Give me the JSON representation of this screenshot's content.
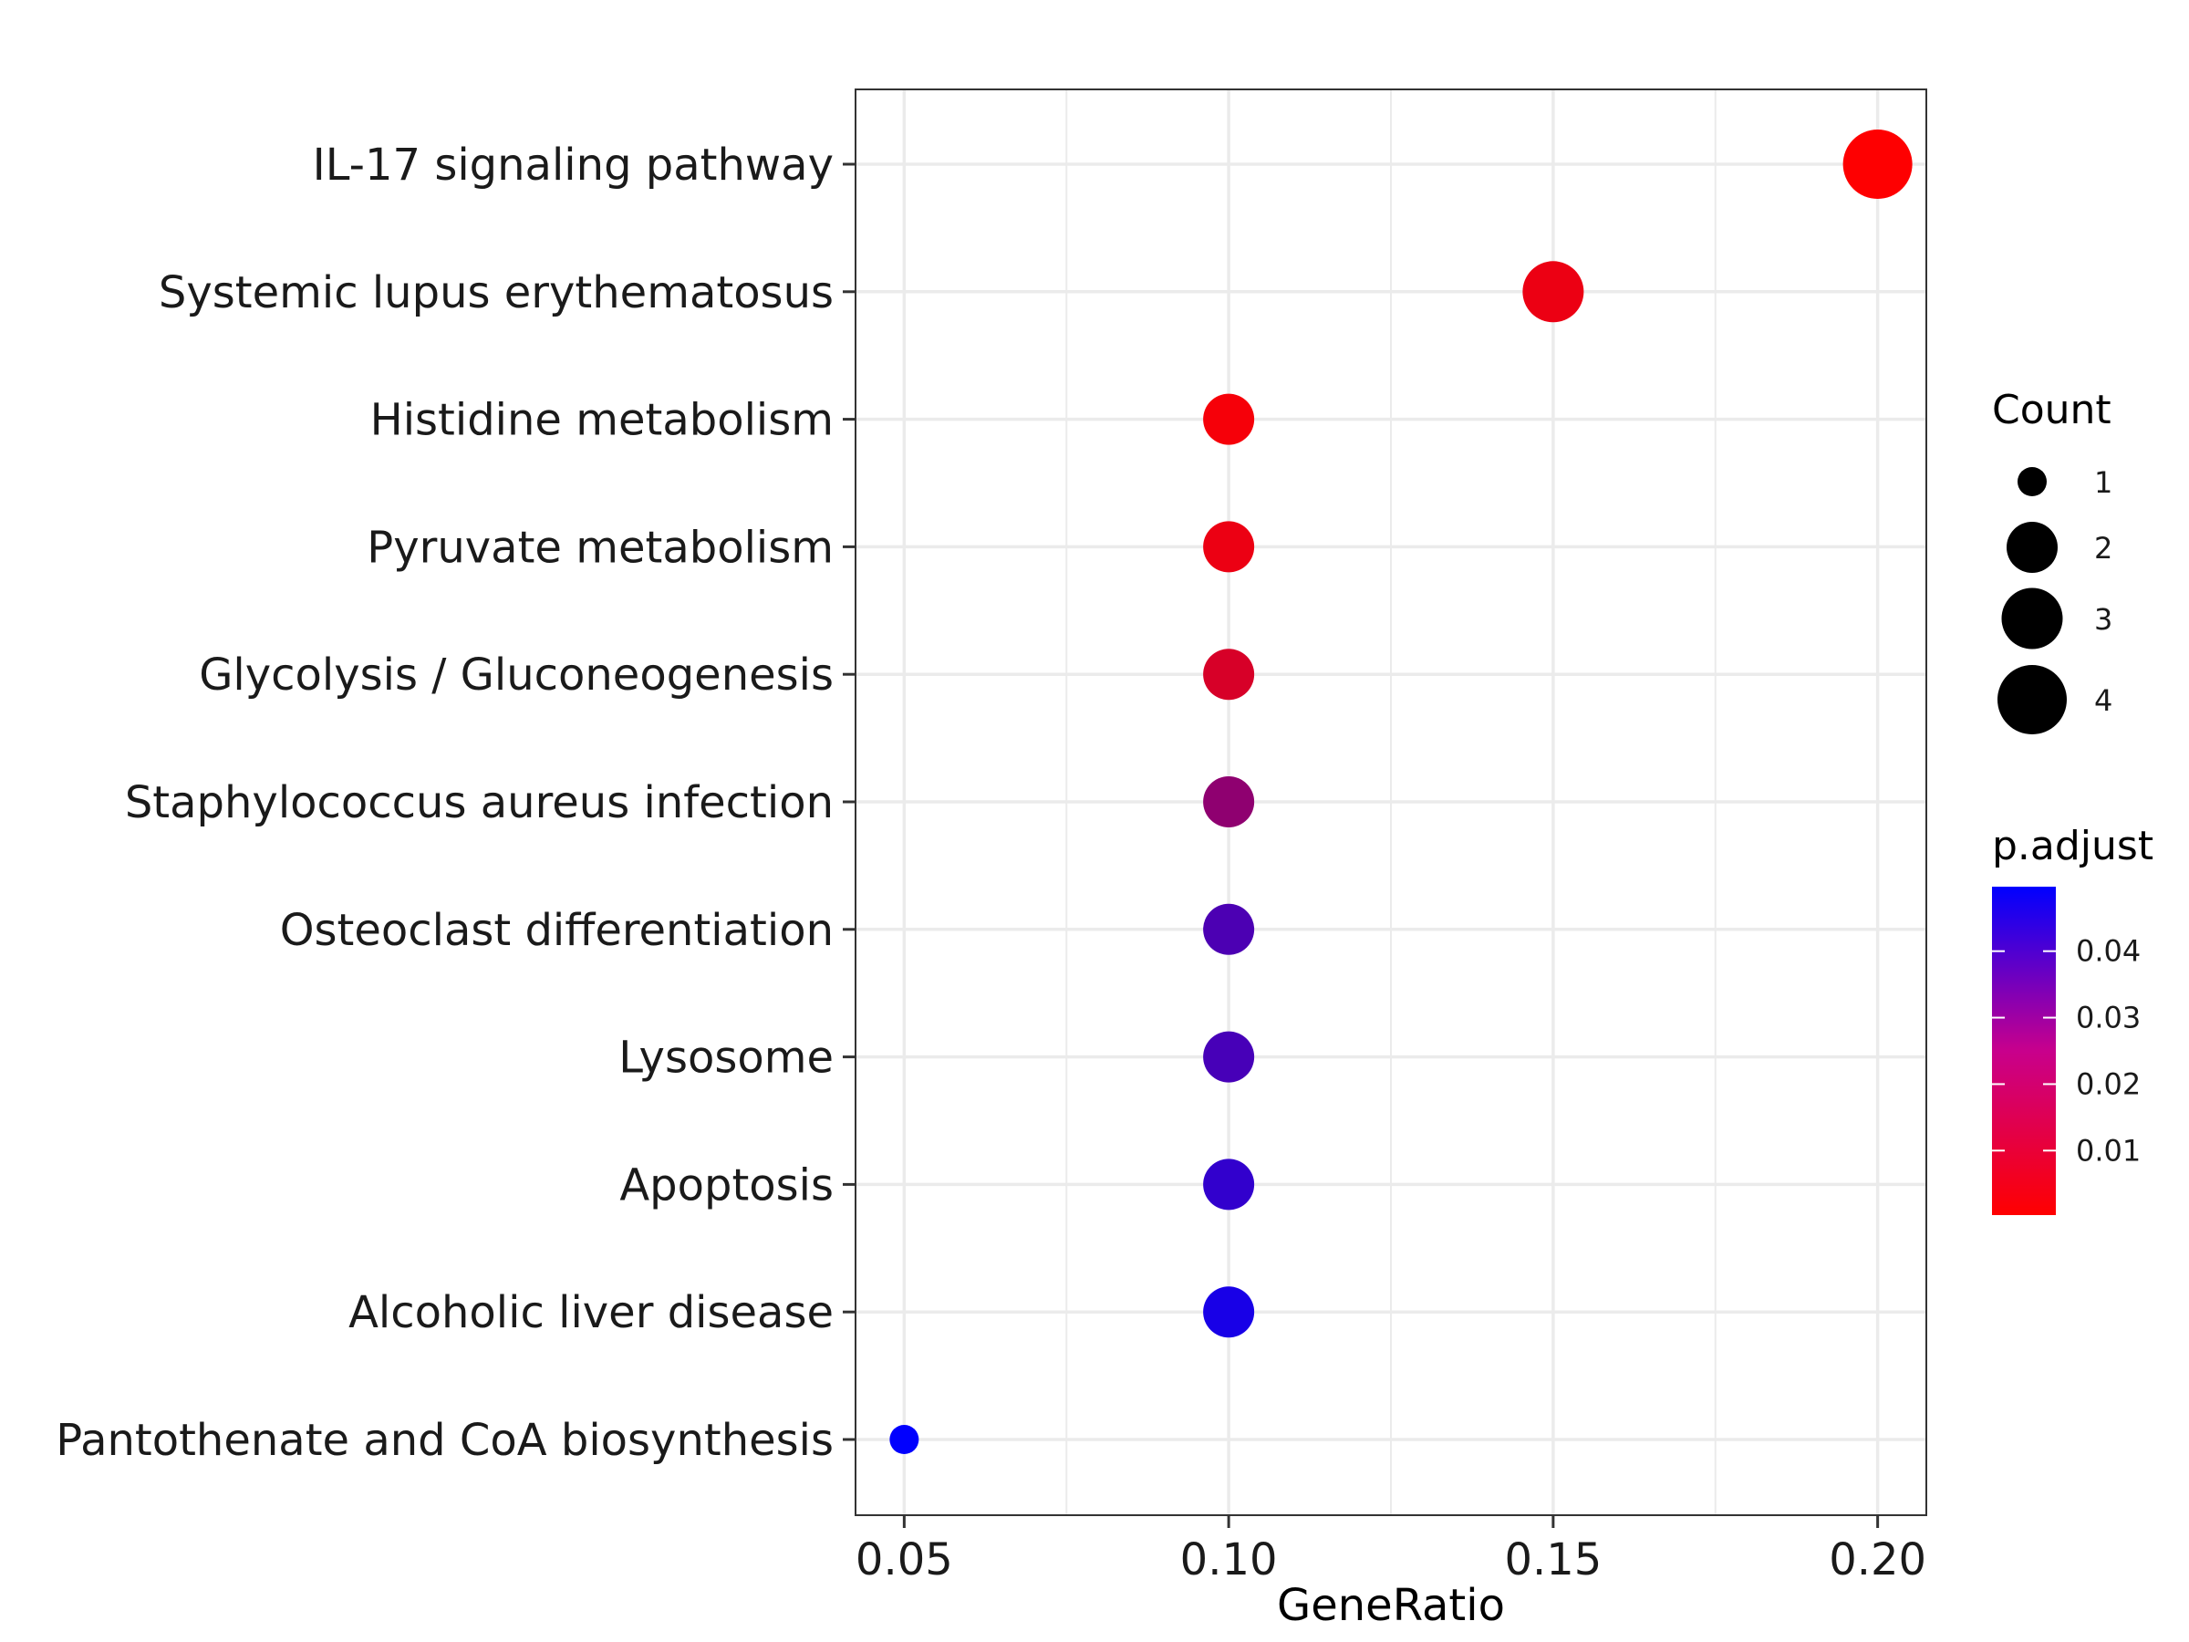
{
  "chart_data": {
    "type": "scatter",
    "title": "",
    "xlabel": "GeneRatio",
    "ylabel": "",
    "xlim": [
      0.0425,
      0.2075
    ],
    "x_ticks": [
      "0.05",
      "0.10",
      "0.15",
      "0.20"
    ],
    "x_tick_values": [
      0.05,
      0.1,
      0.15,
      0.2
    ],
    "grid": true,
    "categories": [
      "IL-17 signaling pathway",
      "Systemic lupus erythematosus",
      "Histidine metabolism",
      "Pyruvate metabolism",
      "Glycolysis / Gluconeogenesis",
      "Staphylococcus aureus infection",
      "Osteoclast differentiation",
      "Lysosome",
      "Apoptosis",
      "Alcoholic liver disease",
      "Pantothenate and CoA biosynthesis"
    ],
    "points": [
      {
        "category": "IL-17 signaling pathway",
        "gene_ratio": 0.2,
        "count": 4,
        "p_adjust": 0.0005
      },
      {
        "category": "Systemic lupus erythematosus",
        "gene_ratio": 0.15,
        "count": 3,
        "p_adjust": 0.004
      },
      {
        "category": "Histidine metabolism",
        "gene_ratio": 0.1,
        "count": 2,
        "p_adjust": 0.002
      },
      {
        "category": "Pyruvate metabolism",
        "gene_ratio": 0.1,
        "count": 2,
        "p_adjust": 0.004
      },
      {
        "category": "Glycolysis / Gluconeogenesis",
        "gene_ratio": 0.1,
        "count": 2,
        "p_adjust": 0.008
      },
      {
        "category": "Staphylococcus aureus infection",
        "gene_ratio": 0.1,
        "count": 2,
        "p_adjust": 0.022
      },
      {
        "category": "Osteoclast differentiation",
        "gene_ratio": 0.1,
        "count": 2,
        "p_adjust": 0.035
      },
      {
        "category": "Lysosome",
        "gene_ratio": 0.1,
        "count": 2,
        "p_adjust": 0.036
      },
      {
        "category": "Apoptosis",
        "gene_ratio": 0.1,
        "count": 2,
        "p_adjust": 0.04
      },
      {
        "category": "Alcoholic liver disease",
        "gene_ratio": 0.1,
        "count": 2,
        "p_adjust": 0.045
      },
      {
        "category": "Pantothenate and CoA biosynthesis",
        "gene_ratio": 0.05,
        "count": 1,
        "p_adjust": 0.0495
      }
    ],
    "size_legend": {
      "title": "Count",
      "values": [
        1,
        2,
        3,
        4
      ],
      "labels": [
        "1",
        "2",
        "3",
        "4"
      ]
    },
    "color_legend": {
      "title": "p.adjust",
      "range": [
        0.0003,
        0.0497
      ],
      "tick_values": [
        0.01,
        0.02,
        0.03,
        0.04
      ],
      "tick_labels": [
        "0.01",
        "0.02",
        "0.03",
        "0.04"
      ],
      "low_color": "#ff0000",
      "high_color": "#0000ff"
    },
    "legend_position": "right"
  }
}
